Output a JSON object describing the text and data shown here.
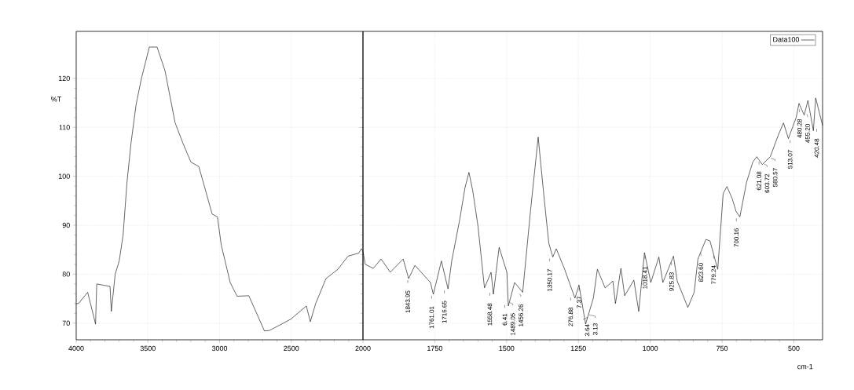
{
  "chart_data": [
    {
      "type": "line",
      "ylabel": "%T",
      "xlim": [
        4000,
        2000
      ],
      "xticks": [
        4000,
        3500,
        3000,
        2500,
        2000
      ],
      "ylim": [
        66.6,
        129.6
      ],
      "yticks": [
        70,
        80,
        90,
        100,
        110,
        120
      ],
      "grid": true,
      "series": [
        {
          "color": "#000000",
          "x": [
            4000,
            3984,
            3920,
            3865,
            3857,
            3764,
            3755,
            3728,
            3700,
            3673,
            3646,
            3618,
            3582,
            3545,
            3490,
            3436,
            3381,
            3310,
            3255,
            3200,
            3145,
            3052,
            3015,
            2988,
            2926,
            2878,
            2796,
            2687,
            2652,
            2504,
            2395,
            2367,
            2330,
            2258,
            2175,
            2104,
            2029,
            2011,
            2000
          ],
          "values": [
            74.0,
            74.0,
            76.3,
            69.8,
            78.0,
            77.5,
            72.4,
            80.0,
            82.7,
            88.0,
            98.7,
            106.7,
            114.7,
            120.0,
            126.4,
            126.4,
            121.6,
            110.9,
            106.7,
            102.9,
            102.0,
            92.3,
            91.7,
            85.9,
            78.3,
            75.5,
            75.6,
            68.4,
            68.5,
            70.8,
            73.5,
            70.3,
            74.0,
            79.1,
            81.0,
            83.7,
            84.3,
            85.2,
            84.7
          ]
        }
      ]
    },
    {
      "type": "line",
      "xlabel": "cm-1",
      "xlim": [
        2000,
        400
      ],
      "xticks": [
        1750,
        1500,
        1250,
        1000,
        750,
        500
      ],
      "ylim": [
        66.6,
        129.6
      ],
      "yticks": [
        70,
        80,
        90,
        100,
        110,
        120
      ],
      "grid": true,
      "legend": "top right",
      "tick_labels": "x",
      "series": [
        {
          "name": "Data100",
          "color": "#000000",
          "x": [
            2000,
            1992,
            1964,
            1937,
            1905,
            1860,
            1841,
            1819,
            1765,
            1755,
            1727,
            1704,
            1691,
            1663,
            1645,
            1631,
            1618,
            1600,
            1577,
            1554,
            1546,
            1526,
            1499,
            1494,
            1472,
            1444,
            1417,
            1390,
            1371,
            1353,
            1339,
            1327,
            1298,
            1262,
            1248,
            1225,
            1198,
            1184,
            1157,
            1130,
            1121,
            1102,
            1089,
            1057,
            1040,
            1020,
            998,
            970,
            956,
            919,
            906,
            869,
            847,
            834,
            806,
            792,
            765,
            746,
            733,
            715,
            701,
            688,
            665,
            643,
            629,
            610,
            582,
            555,
            536,
            519,
            492,
            482,
            464,
            451,
            432,
            424,
            400
          ],
          "values": [
            84.7,
            82.0,
            81.2,
            83.1,
            80.4,
            83.1,
            79.1,
            81.8,
            78.3,
            75.9,
            82.7,
            77.0,
            82.7,
            91.2,
            97.6,
            100.8,
            97.1,
            90.0,
            77.2,
            80.4,
            75.9,
            85.5,
            80.4,
            73.5,
            78.3,
            76.3,
            92.8,
            108.0,
            96.5,
            86.3,
            83.5,
            85.2,
            81.0,
            75.1,
            77.8,
            69.8,
            75.1,
            81.0,
            77.2,
            78.6,
            74.0,
            81.2,
            75.6,
            78.8,
            72.4,
            84.4,
            78.3,
            83.5,
            78.3,
            83.7,
            78.6,
            73.2,
            76.3,
            83.1,
            87.1,
            86.8,
            81.0,
            96.5,
            97.9,
            95.5,
            92.8,
            91.7,
            98.7,
            102.9,
            104.0,
            102.4,
            104.0,
            108.3,
            110.9,
            107.7,
            112.0,
            114.9,
            112.5,
            115.5,
            109.3,
            116.0,
            110.4
          ]
        }
      ],
      "annotations": [
        {
          "text": "1843.95",
          "x": 1843.95,
          "y": 79.1
        },
        {
          "text": "1761.01",
          "x": 1761.01,
          "y": 75.9
        },
        {
          "text": "1716.65",
          "x": 1716.65,
          "y": 77.0
        },
        {
          "text": "1558.48",
          "x": 1558.48,
          "y": 76.5
        },
        {
          "text": "6.41",
          "x": 1506.41,
          "y": 74.0
        },
        {
          "text": "1489.05",
          "x": 1489.05,
          "y": 74.5
        },
        {
          "text": "1456.26",
          "x": 1456.26,
          "y": 76.3
        },
        {
          "text": "1350.17",
          "x": 1350.17,
          "y": 83.5
        },
        {
          "text": "276.88",
          "x": 1276.88,
          "y": 75.5
        },
        {
          "text": "7.37",
          "x": 1247.37,
          "y": 77.5
        },
        {
          "text": "3.64",
          "x": 1233.64,
          "y": 71.0
        },
        {
          "text": "3.13",
          "x": 1213.13,
          "y": 72.0
        },
        {
          "text": "1018.41",
          "x": 1018.41,
          "y": 84.0
        },
        {
          "text": "925.83",
          "x": 925.83,
          "y": 82.7
        },
        {
          "text": "823.60",
          "x": 823.6,
          "y": 84.6
        },
        {
          "text": "779.24",
          "x": 779.24,
          "y": 84.1
        },
        {
          "text": "700.16",
          "x": 700.16,
          "y": 91.7
        },
        {
          "text": "621.08",
          "x": 621.08,
          "y": 103.3
        },
        {
          "text": "603.72",
          "x": 603.72,
          "y": 102.8
        },
        {
          "text": "580.57",
          "x": 580.57,
          "y": 104.0
        },
        {
          "text": "513.07",
          "x": 513.07,
          "y": 107.7
        },
        {
          "text": "480.28",
          "x": 480.28,
          "y": 114.0
        },
        {
          "text": "455.20",
          "x": 455.2,
          "y": 113.0
        },
        {
          "text": "420.48",
          "x": 420.48,
          "y": 110.0
        }
      ]
    }
  ]
}
